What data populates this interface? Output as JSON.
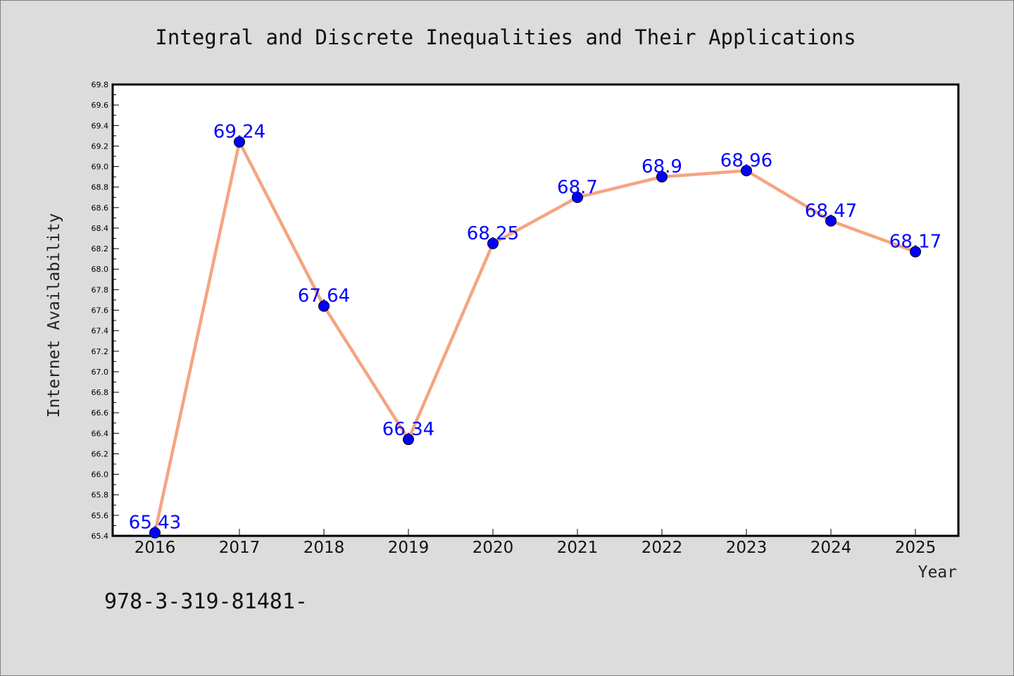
{
  "chart_data": {
    "type": "line",
    "title": "Integral and Discrete Inequalities and Their Applications",
    "xlabel": "Year",
    "ylabel": "Internet Availability",
    "categories": [
      "2016",
      "2017",
      "2018",
      "2019",
      "2020",
      "2021",
      "2022",
      "2023",
      "2024",
      "2025"
    ],
    "series": [
      {
        "values": [
          65.43,
          69.24,
          67.64,
          66.34,
          68.25,
          68.7,
          68.9,
          68.96,
          68.47,
          68.17
        ],
        "data_labels": [
          "65.43",
          "69.24",
          "67.64",
          "66.34",
          "68.25",
          "68.7",
          "68.9",
          "68.96",
          "68.47",
          "68.17"
        ]
      }
    ],
    "ylim": [
      65.4,
      69.8
    ],
    "yticks": [
      "65.4",
      "65.6",
      "65.8",
      "66.0",
      "66.2",
      "66.4",
      "66.6",
      "66.8",
      "67.0",
      "67.2",
      "67.4",
      "67.6",
      "67.8",
      "68.0",
      "68.2",
      "68.4",
      "68.6",
      "68.8",
      "69.0",
      "69.2",
      "69.4",
      "69.6",
      "69.8"
    ],
    "grid": false,
    "legend": "none",
    "colors": {
      "line": "#f4a582",
      "marker": "#0000ff",
      "data_label": "#0000ff",
      "background": "#dcdcdc",
      "plot_background": "#ffffff"
    },
    "footnote": "978-3-319-81481-"
  }
}
